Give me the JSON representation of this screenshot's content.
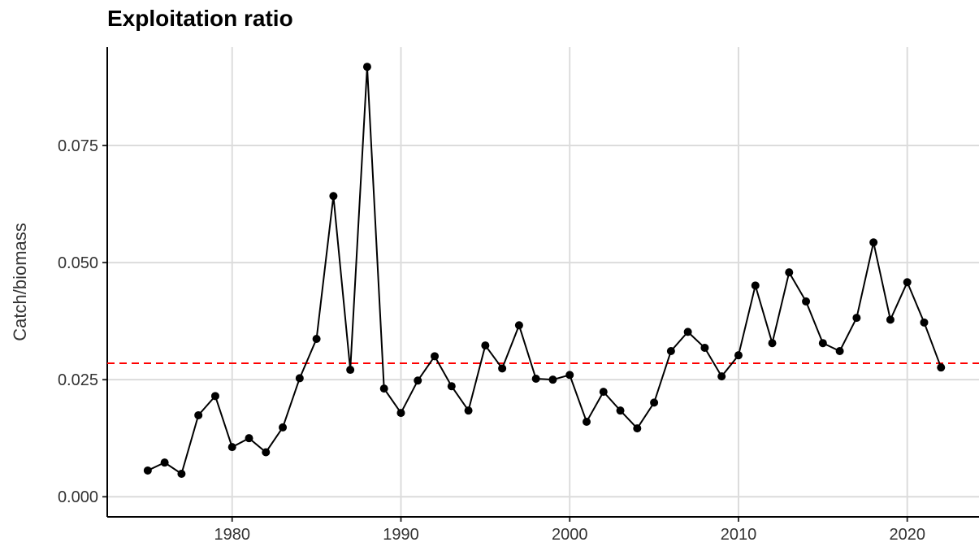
{
  "chart_data": {
    "type": "line",
    "title": "Exploitation ratio",
    "y_label": "Catch/biomass",
    "x": [
      1975,
      1976,
      1977,
      1978,
      1979,
      1980,
      1981,
      1982,
      1983,
      1984,
      1985,
      1986,
      1987,
      1988,
      1989,
      1990,
      1991,
      1992,
      1993,
      1994,
      1995,
      1996,
      1997,
      1998,
      1999,
      2000,
      2001,
      2002,
      2003,
      2004,
      2005,
      2006,
      2007,
      2008,
      2009,
      2010,
      2011,
      2012,
      2013,
      2014,
      2015,
      2016,
      2017,
      2018,
      2019,
      2020,
      2021,
      2022
    ],
    "series": [
      {
        "color": "#000000",
        "values": [
          0.0056,
          0.0073,
          0.0049,
          0.0174,
          0.0215,
          0.0106,
          0.0125,
          0.0095,
          0.0148,
          0.0253,
          0.0337,
          0.0642,
          0.0271,
          0.0918,
          0.0231,
          0.0179,
          0.0248,
          0.03,
          0.0236,
          0.0184,
          0.0323,
          0.0274,
          0.0366,
          0.0252,
          0.025,
          0.026,
          0.016,
          0.0224,
          0.0184,
          0.0146,
          0.0201,
          0.0311,
          0.0352,
          0.0318,
          0.0257,
          0.0302,
          0.0451,
          0.0328,
          0.0479,
          0.0417,
          0.0328,
          0.0311,
          0.0382,
          0.0543,
          0.0378,
          0.0458,
          0.0372,
          0.0276
        ]
      }
    ],
    "reference_line": {
      "value": 0.0285,
      "color": "#ff0000"
    },
    "xlim": [
      1972.6,
      2024.25
    ],
    "xticks": [
      1980,
      1990,
      2000,
      2010,
      2020
    ],
    "ylim": [
      -0.0043,
      0.096
    ],
    "yticks": [
      {
        "value": 0,
        "label": "0.000"
      },
      {
        "value": 0.025,
        "label": "0.025"
      },
      {
        "value": 0.05,
        "label": "0.050"
      },
      {
        "value": 0.075,
        "label": "0.075"
      }
    ],
    "grid": true
  }
}
